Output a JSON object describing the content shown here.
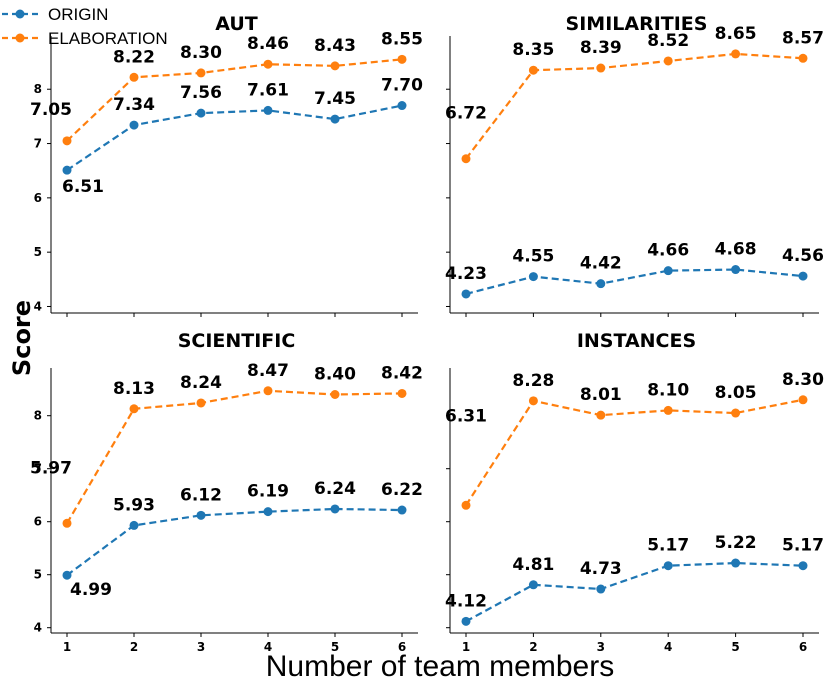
{
  "colors": {
    "origin": "#1f77b4",
    "elaboration": "#ff7f0e"
  },
  "legend": {
    "origin_label": "ORIGIN",
    "elaboration_label": "ELABORATION"
  },
  "xlabel": "Number of team members",
  "ylabel": "Score",
  "chart_data": [
    {
      "type": "line",
      "title": "AUT",
      "x": [
        1,
        2,
        3,
        4,
        5,
        6
      ],
      "ylim": [
        3.88,
        8.98
      ],
      "yticks": [
        4,
        5,
        6,
        7,
        8
      ],
      "series": [
        {
          "name": "ORIGIN",
          "values": [
            6.51,
            7.34,
            7.56,
            7.61,
            7.45,
            7.7
          ],
          "labels": [
            "6.51",
            "7.34",
            "7.56",
            "7.61",
            "7.45",
            "7.70"
          ]
        },
        {
          "name": "ELABORATION",
          "values": [
            7.05,
            8.22,
            8.3,
            8.46,
            8.43,
            8.55
          ],
          "labels": [
            "7.05",
            "8.22",
            "8.30",
            "8.46",
            "8.43",
            "8.55"
          ]
        }
      ]
    },
    {
      "type": "line",
      "title": "SIMILARITIES",
      "x": [
        1,
        2,
        3,
        4,
        5,
        6
      ],
      "ylim": [
        3.88,
        8.98
      ],
      "yticks": [
        4,
        5,
        6,
        7,
        8
      ],
      "series": [
        {
          "name": "ORIGIN",
          "values": [
            4.23,
            4.55,
            4.42,
            4.66,
            4.68,
            4.56
          ],
          "labels": [
            "4.23",
            "4.55",
            "4.42",
            "4.66",
            "4.68",
            "4.56"
          ]
        },
        {
          "name": "ELABORATION",
          "values": [
            6.72,
            8.35,
            8.39,
            8.52,
            8.65,
            8.57
          ],
          "labels": [
            "6.72",
            "8.35",
            "8.39",
            "8.52",
            "8.65",
            "8.57"
          ]
        }
      ]
    },
    {
      "type": "line",
      "title": "SCIENTIFIC",
      "x": [
        1,
        2,
        3,
        4,
        5,
        6
      ],
      "ylim": [
        3.9,
        8.9
      ],
      "yticks": [
        4,
        5,
        6,
        7,
        8
      ],
      "series": [
        {
          "name": "ORIGIN",
          "values": [
            4.99,
            5.93,
            6.12,
            6.19,
            6.24,
            6.22
          ],
          "labels": [
            "4.99",
            "5.93",
            "6.12",
            "6.19",
            "6.24",
            "6.22"
          ]
        },
        {
          "name": "ELABORATION",
          "values": [
            5.97,
            8.13,
            8.24,
            8.47,
            8.4,
            8.42
          ],
          "labels": [
            "5.97",
            "8.13",
            "8.24",
            "8.47",
            "8.40",
            "8.42"
          ]
        }
      ]
    },
    {
      "type": "line",
      "title": "INSTANCES",
      "x": [
        1,
        2,
        3,
        4,
        5,
        6
      ],
      "ylim": [
        3.9,
        8.9
      ],
      "yticks": [
        4,
        5,
        6,
        7,
        8
      ],
      "series": [
        {
          "name": "ORIGIN",
          "values": [
            4.12,
            4.81,
            4.73,
            5.17,
            5.22,
            5.17
          ],
          "labels": [
            "4.12",
            "4.81",
            "4.73",
            "5.17",
            "5.22",
            "5.17"
          ]
        },
        {
          "name": "ELABORATION",
          "values": [
            6.31,
            8.28,
            8.01,
            8.1,
            8.05,
            8.3
          ],
          "labels": [
            "6.31",
            "8.28",
            "8.01",
            "8.10",
            "8.05",
            "8.30"
          ]
        }
      ]
    }
  ]
}
